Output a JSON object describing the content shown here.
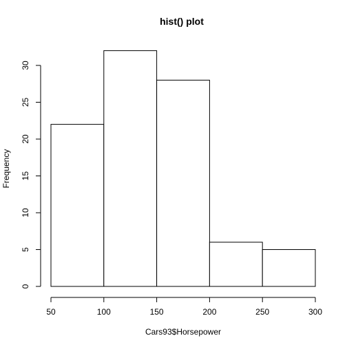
{
  "chart_data": {
    "type": "bar",
    "title": "hist() plot",
    "xlabel": "Cars93$Horsepower",
    "ylabel": "Frequency",
    "bins": [
      {
        "from": 50,
        "to": 100,
        "value": 22
      },
      {
        "from": 100,
        "to": 150,
        "value": 32
      },
      {
        "from": 150,
        "to": 200,
        "value": 28
      },
      {
        "from": 200,
        "to": 250,
        "value": 6
      },
      {
        "from": 250,
        "to": 300,
        "value": 5
      }
    ],
    "xlim": [
      50,
      300
    ],
    "ylim": [
      0,
      32
    ],
    "x_ticks": [
      "50",
      "100",
      "150",
      "200",
      "250",
      "300"
    ],
    "y_ticks": [
      "0",
      "5",
      "10",
      "15",
      "20",
      "25",
      "30"
    ],
    "grid": false,
    "bar_fill": "#ffffff",
    "bar_stroke": "#000000"
  }
}
